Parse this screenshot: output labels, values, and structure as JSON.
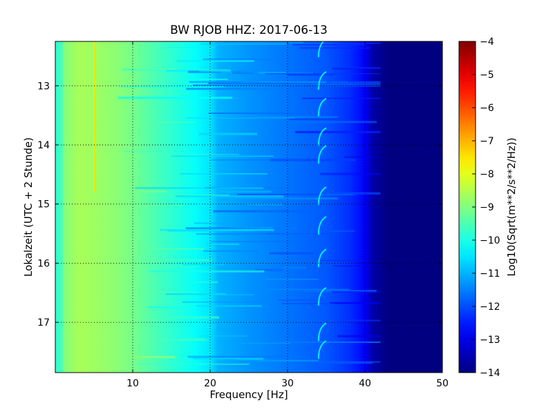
{
  "chart_data": {
    "type": "heatmap",
    "title": "BW RJOB HHZ: 2017-06-13",
    "xlabel": "Frequency [Hz]",
    "ylabel": "Lokalzeit (UTC + 2 Stunde)",
    "xlim": [
      0,
      50
    ],
    "ylim": [
      12.25,
      17.85
    ],
    "y_inverted": true,
    "x_ticks": [
      10,
      20,
      30,
      40,
      50
    ],
    "y_ticks": [
      13,
      14,
      15,
      16,
      17
    ],
    "grid": true,
    "colorbar": {
      "label": "Log10(Sqrt(m**2/s**2/Hz))",
      "range": [
        -14,
        -4
      ],
      "ticks": [
        -4,
        -5,
        -6,
        -7,
        -8,
        -9,
        -10,
        -11,
        -12,
        -13,
        -14
      ],
      "colormap": "jet"
    },
    "spectral_profile": {
      "frequency_hz": [
        0,
        1,
        3,
        5,
        8,
        10,
        12,
        15,
        18,
        20,
        21,
        25,
        30,
        35,
        38,
        40,
        41,
        43,
        50
      ],
      "log_psd": [
        -9.8,
        -9.0,
        -8.6,
        -8.7,
        -8.9,
        -9.1,
        -9.4,
        -9.8,
        -10.2,
        -10.5,
        -11.0,
        -11.3,
        -11.6,
        -11.9,
        -12.3,
        -12.8,
        -13.6,
        -14.0,
        -14.0
      ]
    },
    "narrow_line": {
      "frequency_hz": 5,
      "time_range": [
        12.25,
        14.8
      ],
      "log_psd": -7.5
    },
    "drifting_tone": {
      "frequency_hz_range": [
        34,
        35
      ],
      "times": [
        12.4,
        12.95,
        13.4,
        13.9,
        14.2,
        14.9,
        15.4,
        15.95,
        16.6,
        17.2,
        17.5
      ]
    }
  }
}
